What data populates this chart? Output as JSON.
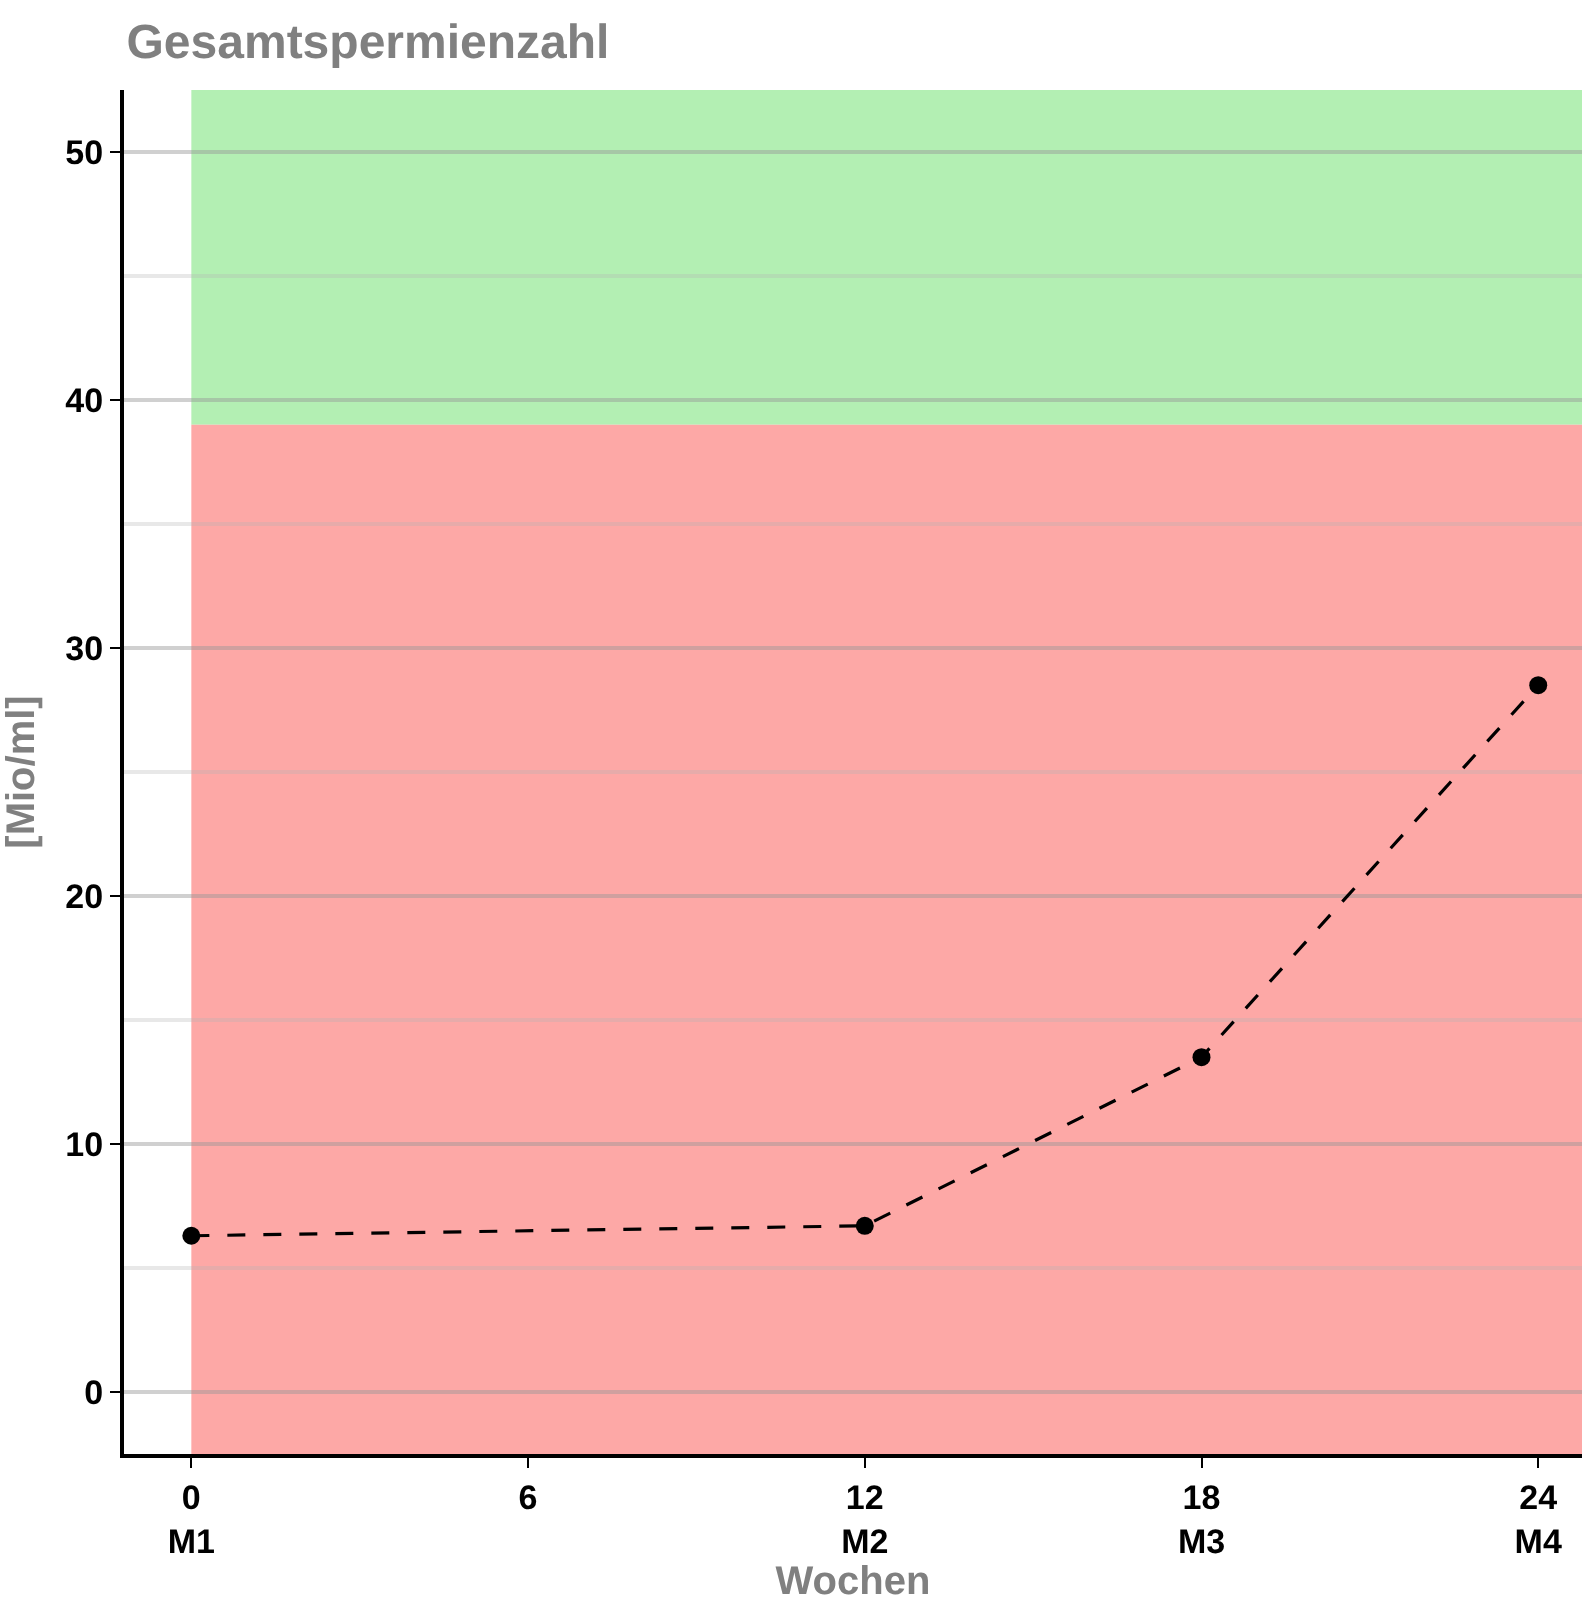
{
  "chart_data": {
    "type": "line",
    "title": "Gesamtspermienzahl",
    "xlabel": "Wochen",
    "ylabel": "[Mio/ml]",
    "categories": [
      "0\nM1",
      "6",
      "12\nM2",
      "18\nM3",
      "24\nM4"
    ],
    "series": [
      {
        "color": "#000000",
        "values": [
          6.3,
          null,
          6.7,
          13.5,
          28.5
        ]
      }
    ],
    "ylim": [
      -2.5,
      52.5
    ],
    "yticks": [
      0,
      10,
      20,
      30,
      40,
      50
    ],
    "bands": [
      {
        "axis": "y",
        "from": 39,
        "to": 52.5,
        "color": "#b3efb3"
      },
      {
        "axis": "y",
        "from": -2.5,
        "to": 39,
        "color": "#fda8a6"
      }
    ],
    "grid": "y",
    "marker": "circle",
    "line_style": "dashed"
  }
}
